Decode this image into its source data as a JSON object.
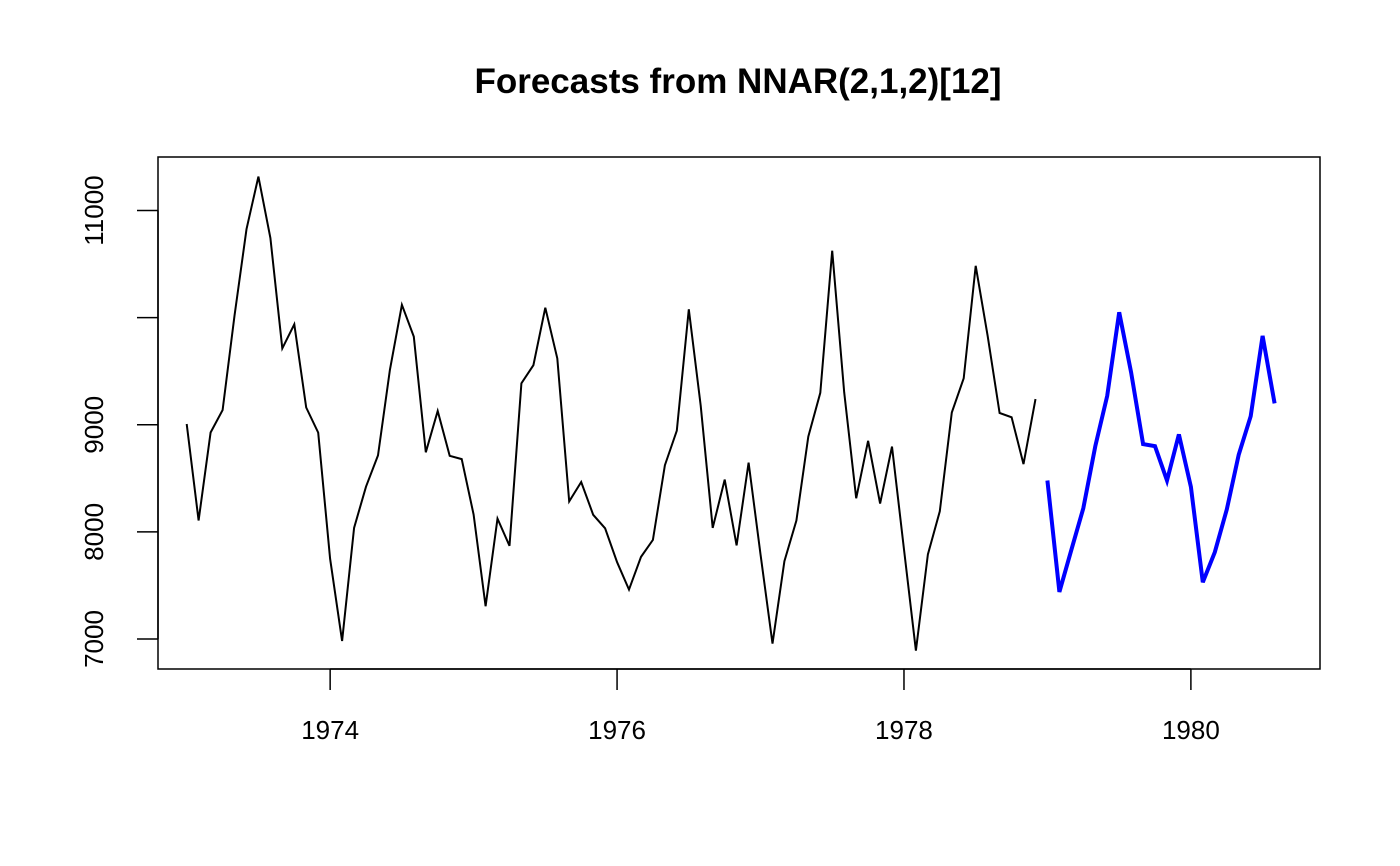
{
  "chart_data": {
    "type": "line",
    "title": "Forecasts from NNAR(2,1,2)[12]",
    "xlabel": "",
    "ylabel": "",
    "xlim": [
      1972.8,
      1980.9
    ],
    "ylim": [
      6720,
      11500
    ],
    "x_ticks": [
      1974,
      1976,
      1978,
      1980
    ],
    "x_tick_labels": [
      "1974",
      "1976",
      "1978",
      "1980"
    ],
    "y_ticks": [
      7000,
      8000,
      9000,
      10000,
      11000
    ],
    "y_tick_labels": [
      "7000",
      "8000",
      "9000",
      "",
      "11000"
    ],
    "grid": false,
    "legend": "none",
    "series": [
      {
        "color": "#000000",
        "start": 1973.0,
        "step": 0.0833333,
        "values": [
          9007,
          8106,
          8928,
          9137,
          10017,
          10826,
          11317,
          10744,
          9713,
          9938,
          9161,
          8927,
          7750,
          6981,
          8038,
          8422,
          8714,
          9512,
          10120,
          9823,
          8743,
          9129,
          8710,
          8680,
          8162,
          7306,
          8124,
          7870,
          9387,
          9556,
          10093,
          9620,
          8285,
          8466,
          8160,
          8034,
          7717,
          7461,
          7767,
          7925,
          8623,
          8945,
          10078,
          9179,
          8037,
          8488,
          7874,
          8647,
          7792,
          6957,
          7726,
          8106,
          8890,
          9299,
          10625,
          9302,
          8314,
          8850,
          8265,
          8796,
          7836,
          6892,
          7791,
          8192,
          9115,
          9434,
          10484,
          9827,
          9110,
          9070,
          8633,
          9240
        ]
      },
      {
        "color": "#0000ff",
        "start": 1979.0,
        "step": 0.0833333,
        "values": [
          8480,
          7440,
          7830,
          8220,
          8800,
          9270,
          10050,
          9490,
          8820,
          8800,
          8480,
          8910,
          8420,
          7530,
          7810,
          8210,
          8720,
          9080,
          9830,
          9200
        ]
      }
    ]
  }
}
